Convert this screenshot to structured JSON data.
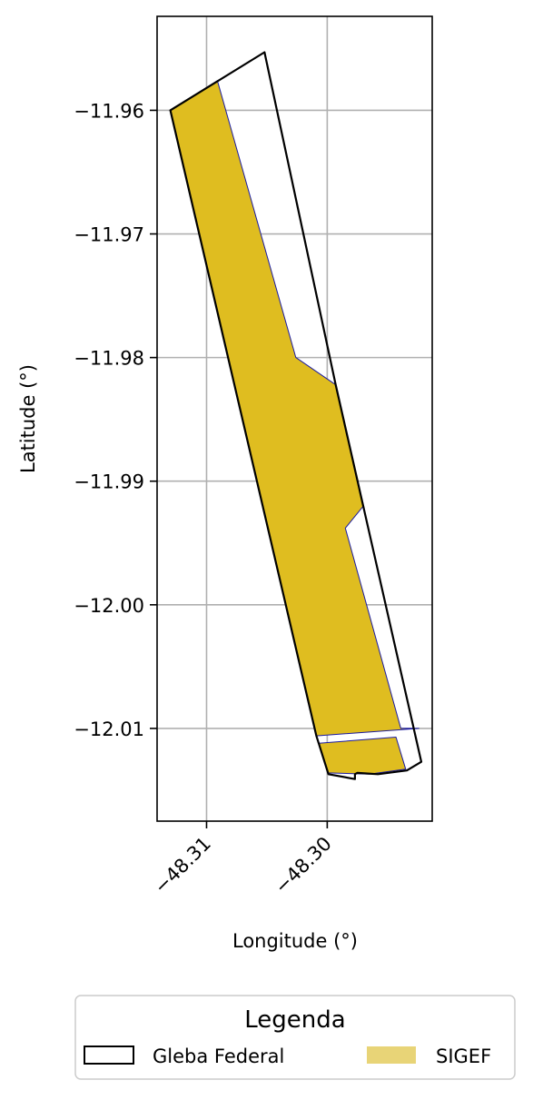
{
  "chart_data": {
    "type": "map",
    "xlabel": "Longitude (°)",
    "ylabel": "Latitude (°)",
    "xlim": [
      -48.3141,
      -48.2913
    ],
    "ylim": [
      -12.0175,
      -11.9524
    ],
    "xticks": [
      -48.31,
      -48.3
    ],
    "xtick_labels": [
      "−48.31",
      "−48.30"
    ],
    "yticks": [
      -11.96,
      -11.97,
      -11.98,
      -11.99,
      -12.0,
      -12.01
    ],
    "ytick_labels": [
      "−11.96",
      "−11.97",
      "−11.98",
      "−11.99",
      "−12.00",
      "−12.01"
    ],
    "grid": true,
    "colors": {
      "gleba_stroke": "#000000",
      "sigef_fill": "#dfbd20",
      "sigef_stroke": "#1a1aa0",
      "legend_sigef": "#e8d477",
      "grid": "#b0b0b0"
    },
    "gleba_federal": [
      [
        -48.313,
        -11.96
      ],
      [
        -48.3052,
        -11.9553
      ],
      [
        -48.2993,
        -11.9822
      ],
      [
        -48.2922,
        -12.0127
      ],
      [
        -48.2934,
        -12.0134
      ],
      [
        -48.2958,
        -12.0137
      ],
      [
        -48.2975,
        -12.0136
      ],
      [
        -48.2977,
        -12.0137
      ],
      [
        -48.2977,
        -12.0138
      ],
      [
        -48.2977,
        -12.0141
      ],
      [
        -48.2999,
        -12.0137
      ],
      [
        -48.3009,
        -12.0106
      ],
      [
        -48.313,
        -11.96
      ]
    ],
    "sigef": [
      [
        [
          -48.313,
          -11.96
        ],
        [
          -48.3091,
          -11.9576
        ],
        [
          -48.3026,
          -11.98
        ],
        [
          -48.2993,
          -11.9822
        ],
        [
          -48.297,
          -11.992
        ],
        [
          -48.2985,
          -11.9938
        ],
        [
          -48.2939,
          -12.01
        ],
        [
          -48.2924,
          -12.01
        ],
        [
          -48.3009,
          -12.0106
        ],
        [
          -48.313,
          -11.96
        ]
      ],
      [
        [
          -48.3007,
          -12.0112
        ],
        [
          -48.2943,
          -12.0107
        ],
        [
          -48.2935,
          -12.0133
        ],
        [
          -48.2965,
          -12.0137
        ],
        [
          -48.2999,
          -12.0136
        ],
        [
          -48.3007,
          -12.0112
        ]
      ]
    ],
    "legend": {
      "title": "Legenda",
      "placement": "bottom-center",
      "entries": [
        {
          "label": "Gleba Federal",
          "style": "outline"
        },
        {
          "label": "SIGEF",
          "style": "fill"
        }
      ]
    }
  }
}
